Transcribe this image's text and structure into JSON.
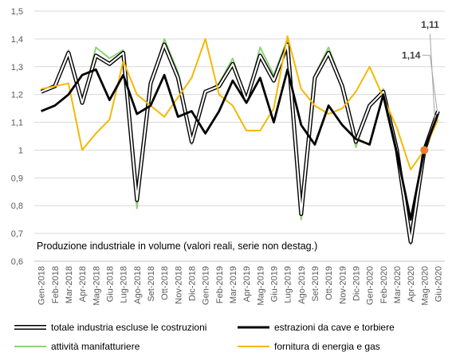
{
  "chart_data": {
    "type": "line",
    "subtitle": "Produzione  industriale in volume (valori reali, serie non destag.)",
    "ylim": [
      0.6,
      1.5
    ],
    "yticks": [
      "0,6",
      "0,7",
      "0,8",
      "0,9",
      "1",
      "1,1",
      "1,2",
      "1,3",
      "1,4",
      "1,5"
    ],
    "categories": [
      "Gen-2018",
      "Feb-2018",
      "Mar-2018",
      "Apr-2018",
      "Mag-2018",
      "Giu-2018",
      "Lug-2018",
      "Ago-2018",
      "Set-2018",
      "Ott-2018",
      "Nov-2018",
      "Dic-2018",
      "Gen-2019",
      "Feb-2019",
      "Mar-2019",
      "Apr-2019",
      "Mag-2019",
      "Giu-2019",
      "Lug-2019",
      "Ago-2019",
      "Set-2019",
      "Ott-2019",
      "Nov-2019",
      "Dic-2019",
      "Gen-2020",
      "Feb-2020",
      "Mar-2020",
      "Apr-2020",
      "Mag-2020",
      "Giu-2020"
    ],
    "grid": true,
    "series": [
      {
        "name": "totale industria escluse le costruzioni",
        "color": "#000000",
        "style": "outlined",
        "values": [
          1.21,
          1.23,
          1.35,
          1.17,
          1.34,
          1.31,
          1.35,
          0.82,
          1.24,
          1.38,
          1.26,
          1.03,
          1.21,
          1.23,
          1.31,
          1.18,
          1.34,
          1.25,
          1.38,
          0.77,
          1.26,
          1.35,
          1.23,
          1.03,
          1.16,
          1.21,
          1.0,
          0.67,
          1.0,
          1.14
        ]
      },
      {
        "name": "estrazioni da cave e torbiere",
        "color": "#000000",
        "style": "thick",
        "values": [
          1.14,
          1.16,
          1.2,
          1.27,
          1.29,
          1.18,
          1.27,
          1.13,
          1.16,
          1.27,
          1.12,
          1.14,
          1.06,
          1.14,
          1.25,
          1.17,
          1.26,
          1.1,
          1.29,
          1.09,
          1.02,
          1.16,
          1.09,
          1.04,
          1.02,
          1.2,
          0.99,
          0.75,
          1.0,
          1.13
        ]
      },
      {
        "name": "attività manifatturiere",
        "color": "#8fd17a",
        "style": "normal",
        "values": [
          1.21,
          1.23,
          1.36,
          1.17,
          1.37,
          1.33,
          1.36,
          0.79,
          1.24,
          1.4,
          1.28,
          1.02,
          1.21,
          1.24,
          1.33,
          1.18,
          1.37,
          1.27,
          1.4,
          0.75,
          1.27,
          1.37,
          1.24,
          1.01,
          1.16,
          1.22,
          0.99,
          0.66,
          1.0,
          1.11
        ]
      },
      {
        "name": "fornitura di energia e gas",
        "color": "#f5b800",
        "style": "normal",
        "values": [
          1.22,
          1.23,
          1.24,
          1.0,
          1.06,
          1.11,
          1.32,
          1.2,
          1.16,
          1.12,
          1.19,
          1.26,
          1.4,
          1.2,
          1.16,
          1.07,
          1.07,
          1.15,
          1.41,
          1.22,
          1.16,
          1.13,
          1.15,
          1.21,
          1.3,
          1.19,
          1.08,
          0.93,
          1.0,
          1.11
        ]
      }
    ],
    "marker": {
      "category": "Mag-2020",
      "value": 1.0,
      "color": "#ed7d31"
    },
    "annotations": [
      {
        "text": "1,11",
        "category": "Giu-2020",
        "value": 1.11
      },
      {
        "text": "1,14",
        "category": "Giu-2020",
        "value": 1.14
      }
    ]
  }
}
